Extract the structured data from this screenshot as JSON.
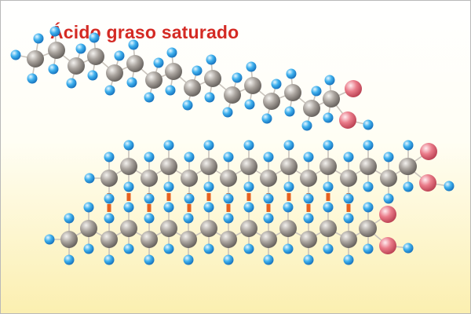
{
  "title": "Ácido graso saturado",
  "colors": {
    "carbon": "#9a948e",
    "hydrogen": "#35a7e8",
    "oxygen": "#e0707e",
    "bond": "#c9c3bc",
    "interaction": "#e6601e",
    "title": "#d42a24"
  }
}
